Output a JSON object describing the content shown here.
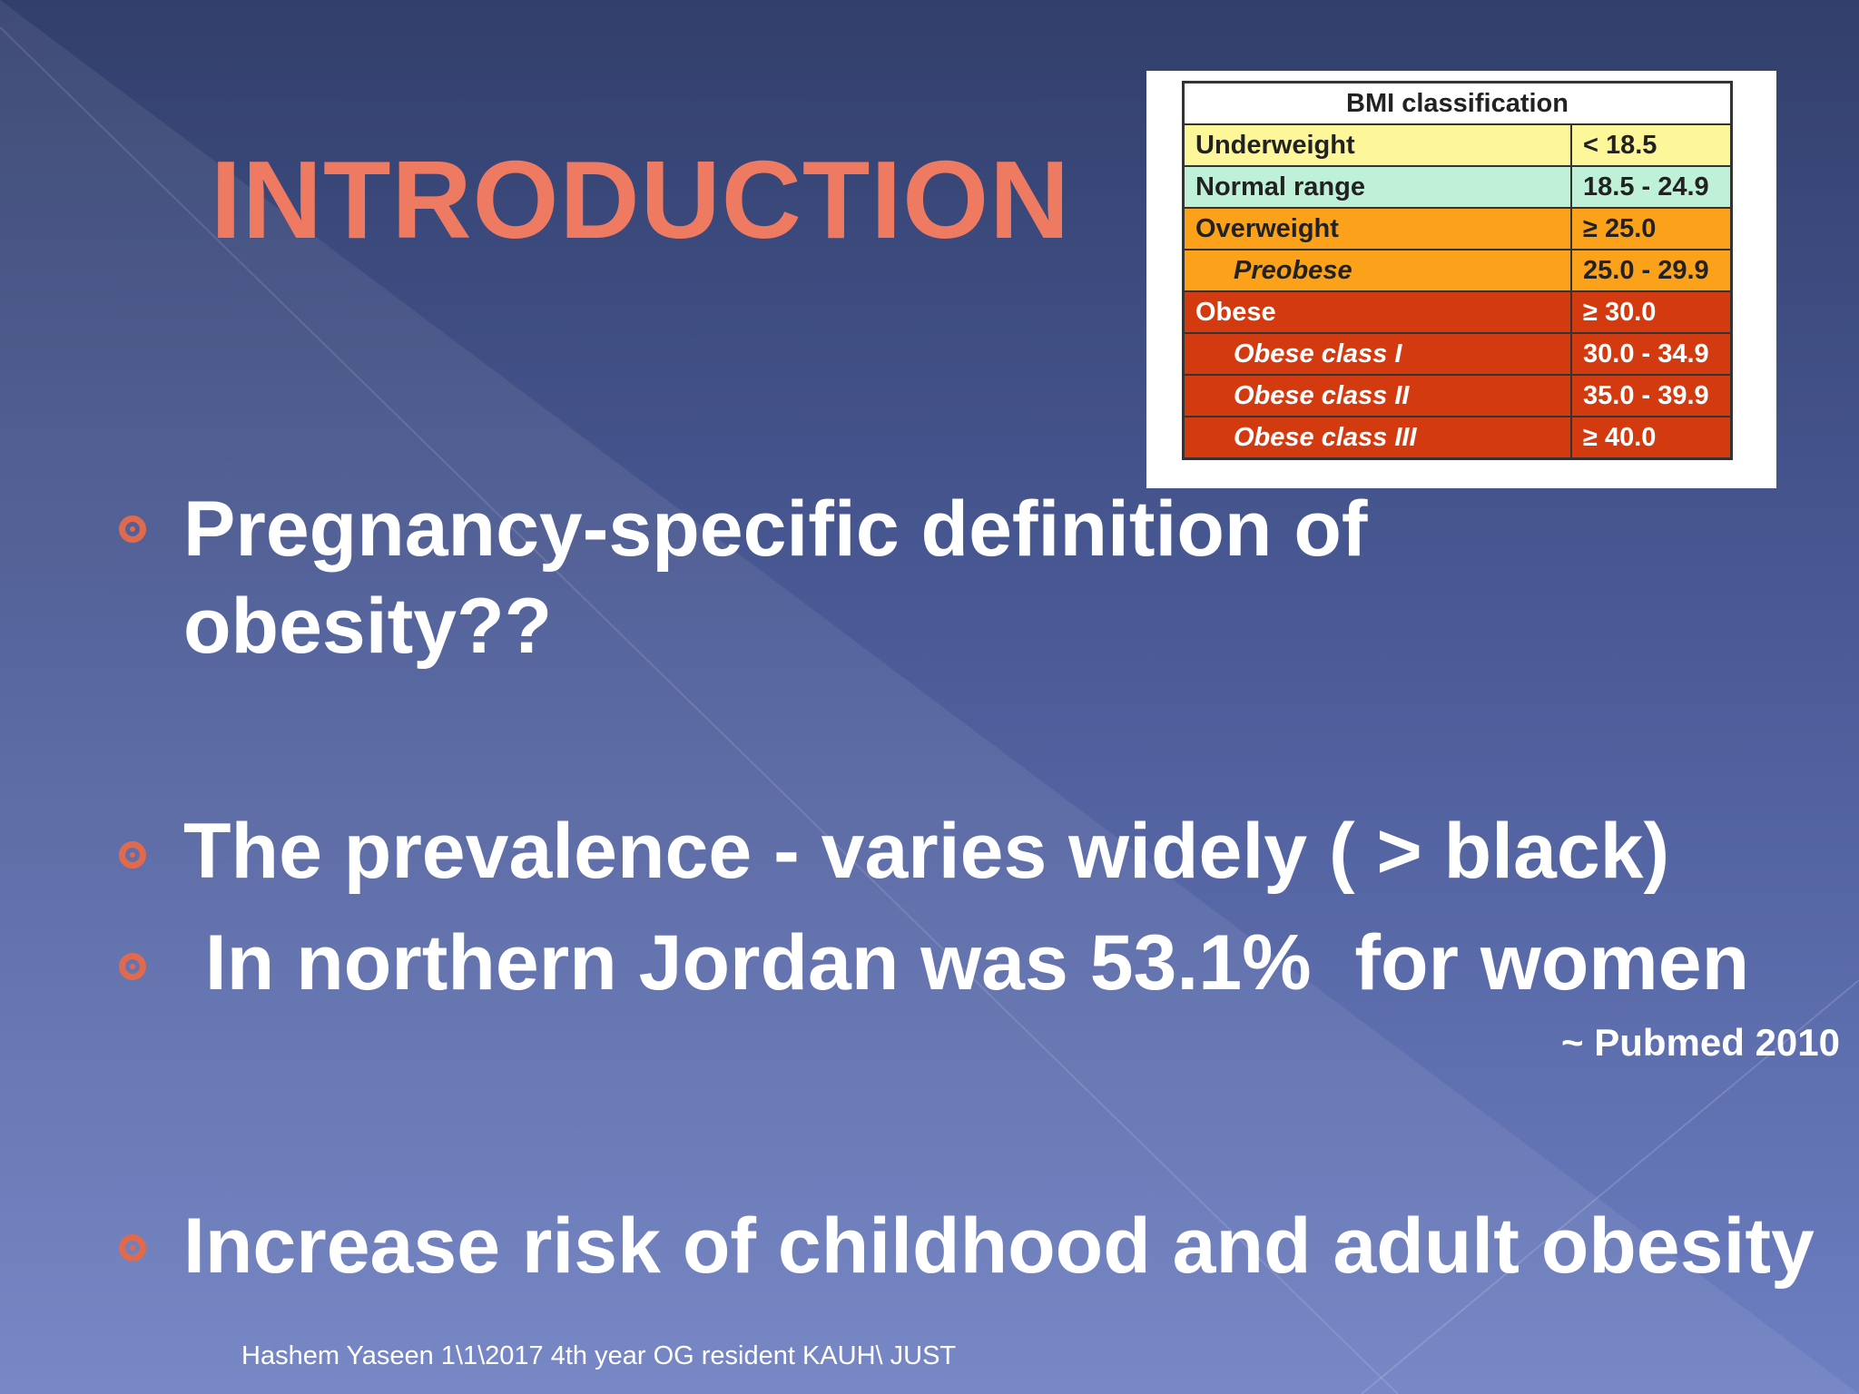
{
  "title": "INTRODUCTION",
  "table": {
    "caption": "BMI classification",
    "rows": [
      [
        "Underweight",
        "< 18.5"
      ],
      [
        "Normal range",
        "18.5 - 24.9"
      ],
      [
        "Overweight",
        "≥ 25.0"
      ],
      [
        "Preobese",
        "25.0 - 29.9"
      ],
      [
        "Obese",
        "≥ 30.0"
      ],
      [
        "Obese class I",
        "30.0 - 34.9"
      ],
      [
        "Obese class II",
        "35.0 - 39.9"
      ],
      [
        "Obese class III",
        "≥ 40.0"
      ]
    ]
  },
  "bullets": [
    "Pregnancy-specific definition of obesity??",
    "The prevalence - varies widely ( > black)",
    " In northern Jordan was 53.1%  for women",
    "Increase risk of childhood and adult obesity"
  ],
  "citation": "~ Pubmed 2010",
  "footer": "Hashem Yaseen 1\\1\\2017 4th year OG resident KAUH\\ JUST"
}
